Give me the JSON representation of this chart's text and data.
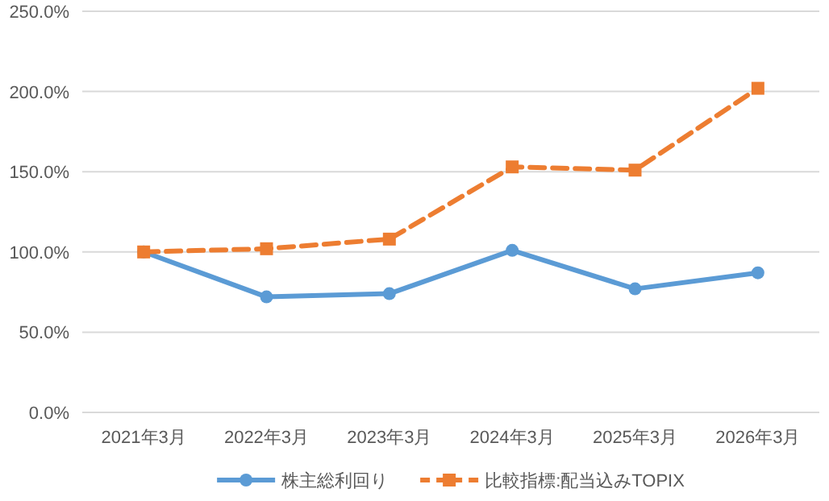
{
  "chart_data": {
    "type": "line",
    "categories": [
      "2021年3月",
      "2022年3月",
      "2023年3月",
      "2024年3月",
      "2025年3月",
      "2026年3月"
    ],
    "series": [
      {
        "name": "株主総利回り",
        "color": "#5b9bd5",
        "marker": "circle",
        "line_style": "solid",
        "values": [
          100,
          72,
          74,
          101,
          77,
          87
        ]
      },
      {
        "name": "比較指標:配当込みTOPIX",
        "color": "#ed7d31",
        "marker": "square",
        "line_style": "dashed",
        "values": [
          100,
          102,
          108,
          153,
          151,
          202
        ]
      }
    ],
    "ylim": [
      0,
      250
    ],
    "yticks": [
      {
        "value": 0,
        "label": "0.0%"
      },
      {
        "value": 50,
        "label": "50.0%"
      },
      {
        "value": 100,
        "label": "100.0%"
      },
      {
        "value": 150,
        "label": "150.0%"
      },
      {
        "value": 200,
        "label": "200.0%"
      },
      {
        "value": 250,
        "label": "250.0%"
      }
    ],
    "grid": "y",
    "legend": "bottom"
  }
}
